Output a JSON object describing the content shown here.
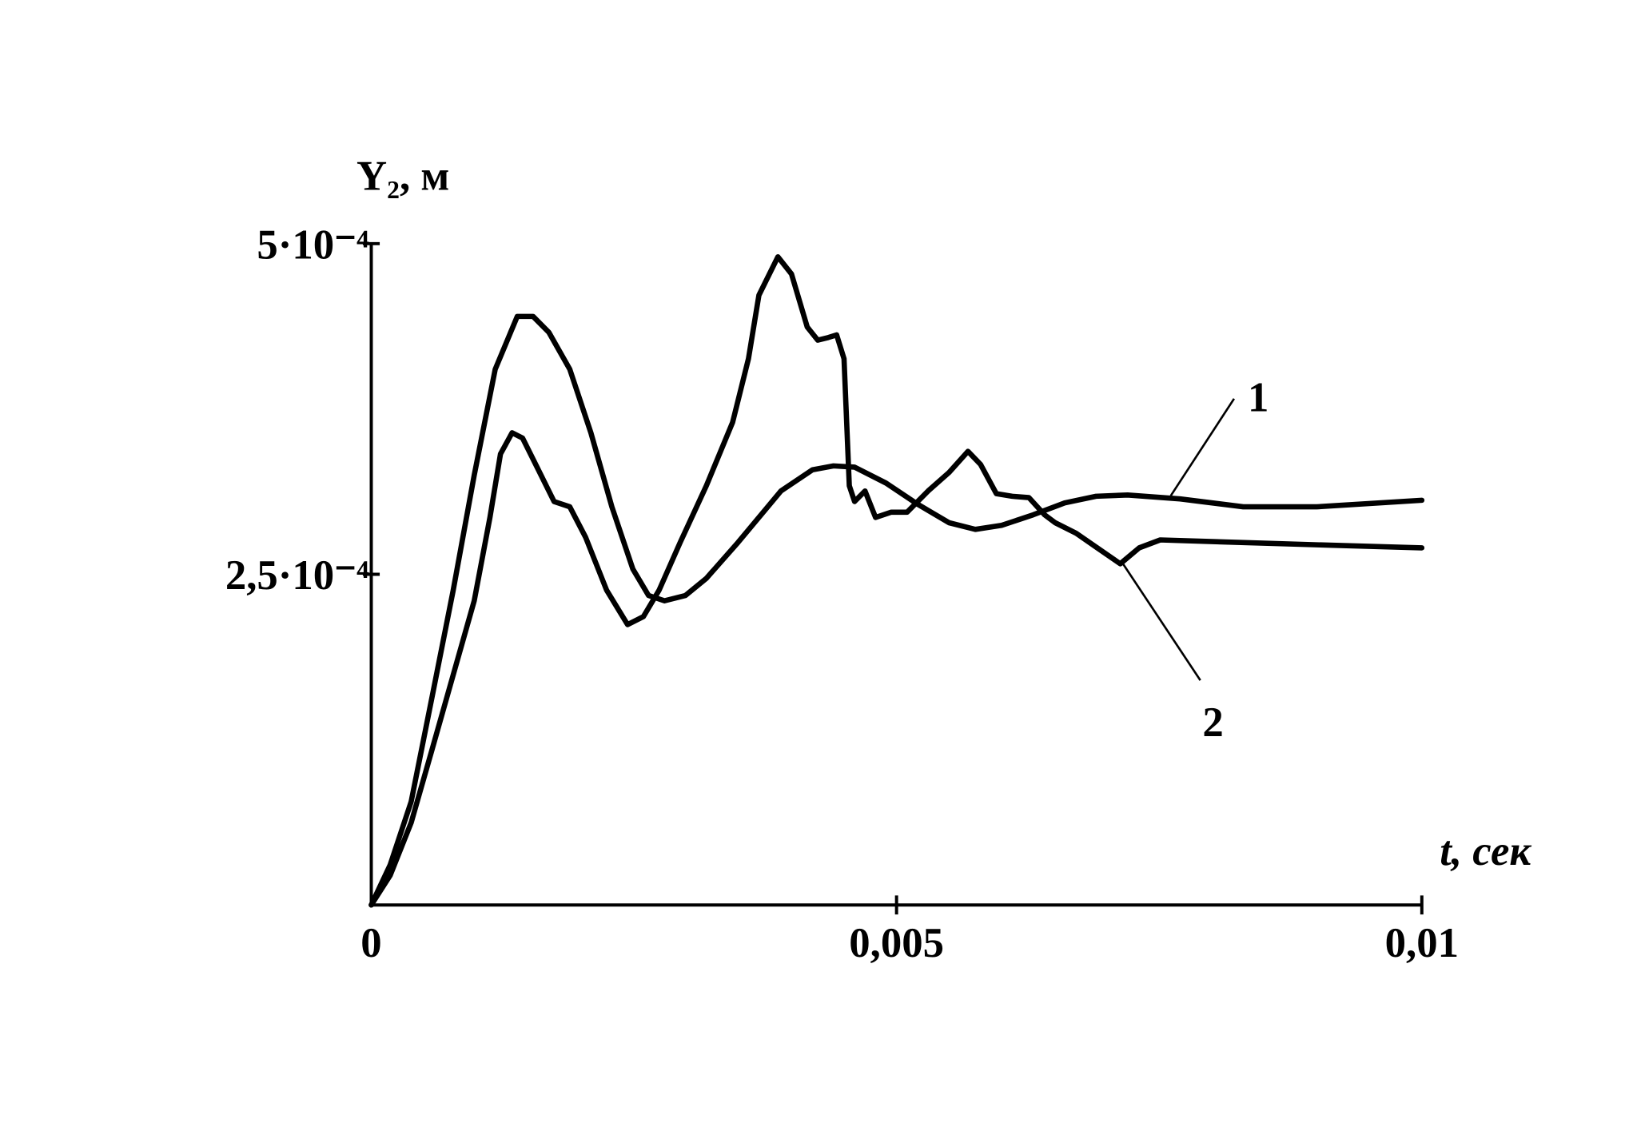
{
  "chart_data": {
    "type": "line",
    "x_label": "t, сек",
    "y_label": "Y₂, м",
    "xlim": [
      0,
      0.01
    ],
    "ylim": [
      0,
      0.0005
    ],
    "xticks": [
      0,
      {
        "value": 0.005,
        "label": "0,005"
      },
      {
        "value": 0.01,
        "label": "0,01"
      }
    ],
    "yticks": [
      {
        "value": 0.00025,
        "label": "2,5·10⁻⁴"
      },
      {
        "value": 0.0005,
        "label": "5·10⁻⁴"
      }
    ],
    "grid": false,
    "series": [
      {
        "name": "1",
        "color": "#000000",
        "x": [
          0,
          0.00018,
          0.00038,
          0.00058,
          0.00078,
          0.00098,
          0.00118,
          0.00139,
          0.00154,
          0.00169,
          0.00189,
          0.00209,
          0.00229,
          0.00249,
          0.00264,
          0.00279,
          0.00299,
          0.00319,
          0.00349,
          0.0039,
          0.0042,
          0.0044,
          0.0046,
          0.0049,
          0.0052,
          0.0055,
          0.00575,
          0.006,
          0.0063,
          0.0066,
          0.0069,
          0.0072,
          0.0077,
          0.0083,
          0.009,
          0.01
        ],
        "values": [
          0,
          3.03e-05,
          7.81e-05,
          0.000158,
          0.000238,
          0.000325,
          0.000405,
          0.000445,
          0.000445,
          0.000433,
          0.000405,
          0.000357,
          0.000301,
          0.000254,
          0.000234,
          0.00023,
          0.000234,
          0.000247,
          0.000274,
          0.000313,
          0.000329,
          0.000332,
          0.000331,
          0.000319,
          0.000303,
          0.000289,
          0.000284,
          0.000287,
          0.000295,
          0.000304,
          0.000309,
          0.00031,
          0.000307,
          0.000301,
          0.000301,
          0.000306
        ]
      },
      {
        "name": "2",
        "color": "#000000",
        "x": [
          0,
          0.00018,
          0.00038,
          0.00058,
          0.00078,
          0.00098,
          0.00113,
          0.00123,
          0.00134,
          0.00144,
          0.00159,
          0.00174,
          0.00189,
          0.00204,
          0.00224,
          0.00244,
          0.00259,
          0.00274,
          0.00294,
          0.00319,
          0.00344,
          0.00359,
          0.00369,
          0.00387,
          0.004,
          0.00415,
          0.00425,
          0.00435,
          0.00443,
          0.0045,
          0.00455,
          0.0046,
          0.0047,
          0.0048,
          0.00495,
          0.0051,
          0.0053,
          0.0055,
          0.00568,
          0.0058,
          0.00595,
          0.0061,
          0.00626,
          0.00641,
          0.00651,
          0.00671,
          0.00691,
          0.00713,
          0.00731,
          0.00751,
          0.00831,
          0.00912,
          0.01
        ],
        "values": [
          0,
          2.23e-05,
          6.22e-05,
          0.000118,
          0.000174,
          0.00023,
          0.000293,
          0.000341,
          0.000357,
          0.000353,
          0.000329,
          0.000305,
          0.000301,
          0.000278,
          0.000238,
          0.000212,
          0.000218,
          0.000238,
          0.000274,
          0.000317,
          0.000365,
          0.000413,
          0.000461,
          0.00049,
          0.000477,
          0.000437,
          0.000427,
          0.000429,
          0.000431,
          0.000413,
          0.000317,
          0.000305,
          0.000313,
          0.000293,
          0.000297,
          0.000297,
          0.000313,
          0.000327,
          0.000343,
          0.000333,
          0.000311,
          0.000309,
          0.000308,
          0.000295,
          0.000289,
          0.000281,
          0.00027,
          0.000258,
          0.00027,
          0.000276,
          0.000274,
          0.000272,
          0.00027
        ]
      }
    ]
  }
}
